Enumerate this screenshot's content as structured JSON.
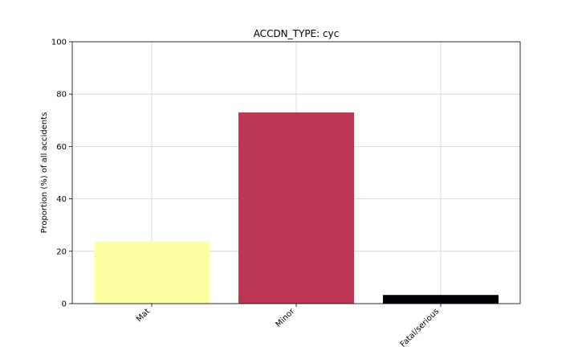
{
  "chart_data": {
    "type": "bar",
    "title": "ACCDN_TYPE: cyc",
    "xlabel": "",
    "ylabel": "Proportion (%) of all accidents",
    "categories": [
      "Mat",
      "Minor",
      "Fatal/serious"
    ],
    "values": [
      23.7,
      73.0,
      3.3
    ],
    "colors": [
      "#fcfea4",
      "#bc3754",
      "#000004"
    ],
    "ylim": [
      0,
      100
    ],
    "yticks": [
      0,
      20,
      40,
      60,
      80,
      100
    ],
    "grid": true,
    "legend": "none"
  }
}
